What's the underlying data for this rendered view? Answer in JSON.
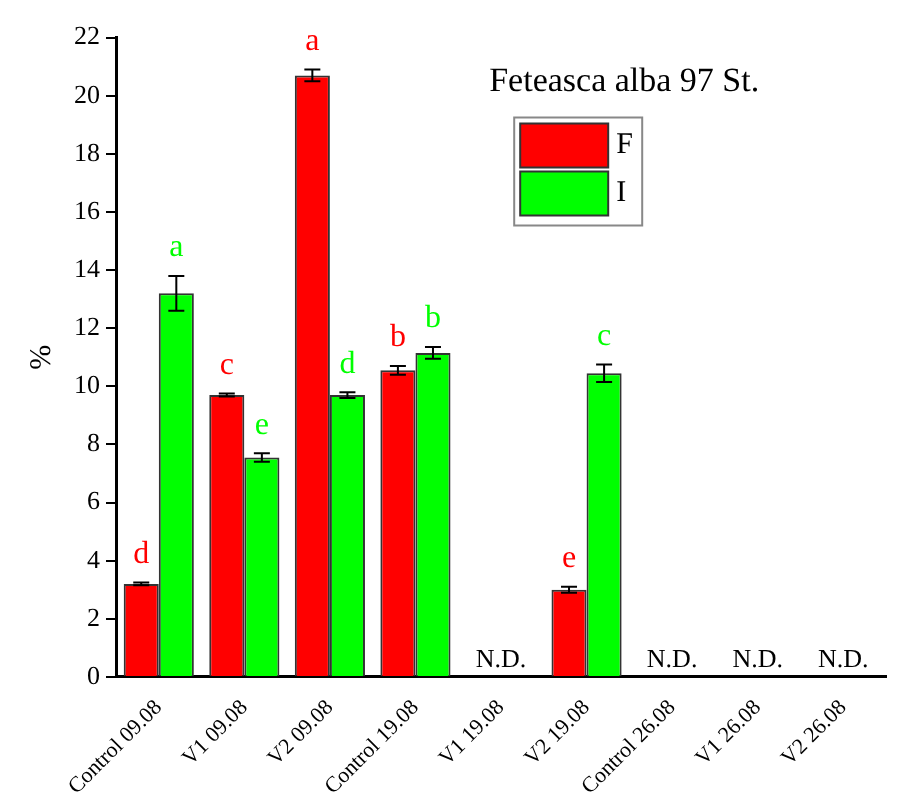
{
  "chart_data": {
    "type": "bar",
    "title": "Feteasca alba 97 St.",
    "ylabel": "%",
    "categories": [
      "Control 09.08",
      "V1 09.08",
      "V2 09.08",
      "Control 19.08",
      "V1 19.08",
      "V2 19.08",
      "Control 26.08",
      "V1 26.08",
      "V2 26.08"
    ],
    "series": [
      {
        "name": "F",
        "color": "#ff0000",
        "values": [
          3.2,
          9.7,
          20.7,
          10.55,
          null,
          3.0,
          null,
          null,
          null
        ],
        "errors": [
          0.05,
          0.05,
          0.2,
          0.15,
          null,
          0.1,
          null,
          null,
          null
        ],
        "value_labels": [
          "d",
          "c",
          "a",
          "b",
          null,
          "e",
          null,
          null,
          null
        ]
      },
      {
        "name": "I",
        "color": "#00ff00",
        "values": [
          13.2,
          7.55,
          9.7,
          11.15,
          null,
          10.45,
          null,
          null,
          null
        ],
        "errors": [
          0.6,
          0.15,
          0.1,
          0.2,
          null,
          0.3,
          null,
          null,
          null
        ],
        "value_labels": [
          "a",
          "e",
          "d",
          "b",
          null,
          "c",
          null,
          null,
          null
        ]
      }
    ],
    "annotations": [
      "N.D.",
      "N.D.",
      "N.D.",
      "N.D."
    ],
    "ylim": [
      0,
      22
    ],
    "yticks": [
      0,
      2,
      4,
      6,
      8,
      10,
      12,
      14,
      16,
      18,
      20,
      22
    ],
    "grid": false,
    "legend": "top right"
  }
}
